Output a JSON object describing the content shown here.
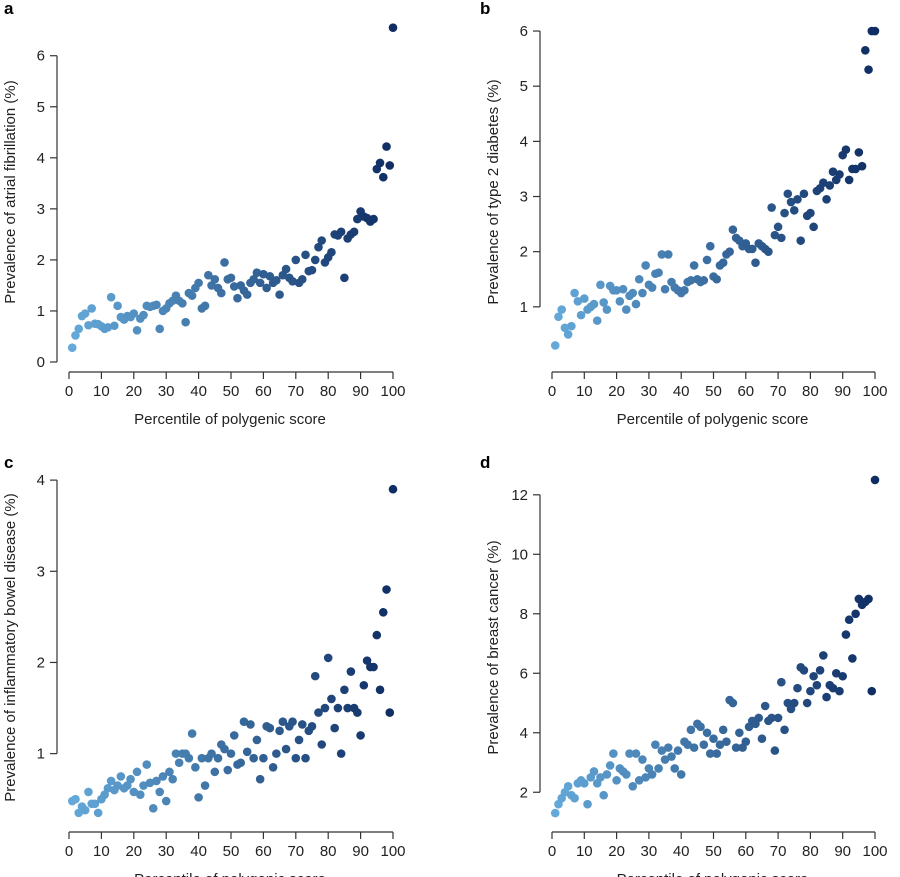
{
  "chart_data": [
    {
      "type": "scatter",
      "panel_label": "a",
      "title": "",
      "xlabel": "Percentile of polygenic score",
      "ylabel": "Prevalence of atrial fibrillation (%)",
      "xlim": [
        0,
        100
      ],
      "ylim": [
        0,
        6.7
      ],
      "xticks": [
        0,
        10,
        20,
        30,
        40,
        50,
        60,
        70,
        80,
        90,
        100
      ],
      "yticks": [
        0,
        1,
        2,
        3,
        4,
        5,
        6
      ],
      "x": [
        1,
        2,
        3,
        4,
        5,
        6,
        7,
        8,
        9,
        10,
        11,
        12,
        13,
        14,
        15,
        16,
        17,
        18,
        19,
        20,
        21,
        22,
        23,
        24,
        25,
        26,
        27,
        28,
        29,
        30,
        31,
        32,
        33,
        34,
        35,
        36,
        37,
        38,
        39,
        40,
        41,
        42,
        43,
        44,
        45,
        46,
        47,
        48,
        49,
        50,
        51,
        52,
        53,
        54,
        55,
        56,
        57,
        58,
        59,
        60,
        61,
        62,
        63,
        64,
        65,
        66,
        67,
        68,
        69,
        70,
        71,
        72,
        73,
        74,
        75,
        76,
        77,
        78,
        79,
        80,
        81,
        82,
        83,
        84,
        85,
        86,
        87,
        88,
        89,
        90,
        91,
        92,
        93,
        94,
        95,
        96,
        97,
        98,
        99,
        100
      ],
      "y": [
        0.28,
        0.52,
        0.65,
        0.9,
        0.95,
        0.72,
        1.05,
        0.75,
        0.74,
        0.7,
        0.65,
        0.68,
        1.27,
        0.71,
        1.1,
        0.88,
        0.83,
        0.9,
        0.88,
        0.95,
        0.62,
        0.85,
        0.92,
        1.1,
        1.08,
        1.1,
        1.12,
        0.65,
        1.0,
        1.05,
        1.15,
        1.2,
        1.3,
        1.2,
        1.15,
        0.78,
        1.35,
        1.3,
        1.45,
        1.55,
        1.05,
        1.1,
        1.7,
        1.5,
        1.62,
        1.45,
        1.35,
        1.95,
        1.62,
        1.65,
        1.48,
        1.25,
        1.5,
        1.4,
        1.32,
        1.55,
        1.62,
        1.75,
        1.55,
        1.72,
        1.45,
        1.68,
        1.55,
        1.6,
        1.32,
        1.7,
        1.82,
        1.65,
        1.58,
        2.0,
        1.55,
        1.62,
        2.1,
        1.78,
        1.8,
        2.0,
        2.25,
        2.38,
        1.95,
        2.05,
        2.15,
        2.5,
        2.48,
        2.55,
        1.65,
        2.42,
        2.5,
        2.55,
        2.8,
        2.95,
        2.85,
        2.82,
        2.75,
        2.8,
        3.78,
        3.9,
        3.62,
        4.22,
        3.85,
        6.55
      ]
    },
    {
      "type": "scatter",
      "panel_label": "b",
      "title": "",
      "xlabel": "Percentile of polygenic score",
      "ylabel": "Prevalence of type 2 diabetes (%)",
      "xlim": [
        0,
        100
      ],
      "ylim": [
        0,
        6.2
      ],
      "xticks": [
        0,
        10,
        20,
        30,
        40,
        50,
        60,
        70,
        80,
        90,
        100
      ],
      "yticks": [
        1,
        2,
        3,
        4,
        5,
        6
      ],
      "x": [
        1,
        2,
        3,
        4,
        5,
        6,
        7,
        8,
        9,
        10,
        11,
        12,
        13,
        14,
        15,
        16,
        17,
        18,
        19,
        20,
        21,
        22,
        23,
        24,
        25,
        26,
        27,
        28,
        29,
        30,
        31,
        32,
        33,
        34,
        35,
        36,
        37,
        38,
        39,
        40,
        41,
        42,
        43,
        44,
        45,
        46,
        47,
        48,
        49,
        50,
        51,
        52,
        53,
        54,
        55,
        56,
        57,
        58,
        59,
        60,
        61,
        62,
        63,
        64,
        65,
        66,
        67,
        68,
        69,
        70,
        71,
        72,
        73,
        74,
        75,
        76,
        77,
        78,
        79,
        80,
        81,
        82,
        83,
        84,
        85,
        86,
        87,
        88,
        89,
        90,
        91,
        92,
        93,
        94,
        95,
        96,
        97,
        98,
        99,
        100
      ],
      "y": [
        0.3,
        0.82,
        0.95,
        0.62,
        0.5,
        0.65,
        1.25,
        1.1,
        0.85,
        1.15,
        0.95,
        1.0,
        1.05,
        0.75,
        1.4,
        1.08,
        0.95,
        1.38,
        1.3,
        1.3,
        1.1,
        1.32,
        0.95,
        1.2,
        1.25,
        1.05,
        1.5,
        1.25,
        1.75,
        1.4,
        1.35,
        1.6,
        1.62,
        1.95,
        1.32,
        1.95,
        1.45,
        1.35,
        1.3,
        1.25,
        1.3,
        1.45,
        1.48,
        1.75,
        1.5,
        1.45,
        1.48,
        1.85,
        2.1,
        1.55,
        1.5,
        1.75,
        1.8,
        1.95,
        2.0,
        2.4,
        2.25,
        2.2,
        2.1,
        2.15,
        2.05,
        2.05,
        1.8,
        2.15,
        2.1,
        2.05,
        2.0,
        2.8,
        2.3,
        2.45,
        2.25,
        2.7,
        3.05,
        2.9,
        2.75,
        2.95,
        2.2,
        3.05,
        2.65,
        2.7,
        2.45,
        3.1,
        3.15,
        3.25,
        2.95,
        3.2,
        3.45,
        3.3,
        3.4,
        3.75,
        3.85,
        3.3,
        3.5,
        3.5,
        3.8,
        3.55,
        5.65,
        5.3,
        6.0,
        6.0
      ]
    },
    {
      "type": "scatter",
      "panel_label": "c",
      "title": "",
      "xlabel": "Percentile of polygenic score",
      "ylabel": "Prevalence of inflammatory bowel disease (%)",
      "xlim": [
        0,
        100
      ],
      "ylim": [
        0.25,
        4.1
      ],
      "xticks": [
        0,
        10,
        20,
        30,
        40,
        50,
        60,
        70,
        80,
        90,
        100
      ],
      "yticks": [
        1,
        2,
        3,
        4
      ],
      "x": [
        1,
        2,
        3,
        4,
        5,
        6,
        7,
        8,
        9,
        10,
        11,
        12,
        13,
        14,
        15,
        16,
        17,
        18,
        19,
        20,
        21,
        22,
        23,
        24,
        25,
        26,
        27,
        28,
        29,
        30,
        31,
        32,
        33,
        34,
        35,
        36,
        37,
        38,
        39,
        40,
        41,
        42,
        43,
        44,
        45,
        46,
        47,
        48,
        49,
        50,
        51,
        52,
        53,
        54,
        55,
        56,
        57,
        58,
        59,
        60,
        61,
        62,
        63,
        64,
        65,
        66,
        67,
        68,
        69,
        70,
        71,
        72,
        73,
        74,
        75,
        76,
        77,
        78,
        79,
        80,
        81,
        82,
        83,
        84,
        85,
        86,
        87,
        88,
        89,
        90,
        91,
        92,
        93,
        94,
        95,
        96,
        97,
        98,
        99,
        100
      ],
      "y": [
        0.48,
        0.5,
        0.35,
        0.42,
        0.38,
        0.58,
        0.45,
        0.45,
        0.35,
        0.5,
        0.55,
        0.62,
        0.7,
        0.6,
        0.65,
        0.75,
        0.62,
        0.65,
        0.72,
        0.58,
        0.8,
        0.55,
        0.65,
        0.88,
        0.68,
        0.4,
        0.7,
        0.58,
        0.75,
        0.48,
        0.8,
        0.72,
        1.0,
        0.9,
        1.0,
        1.0,
        0.95,
        1.22,
        0.85,
        0.52,
        0.95,
        0.65,
        0.95,
        1.0,
        0.8,
        0.95,
        1.1,
        1.05,
        0.82,
        1.0,
        1.2,
        0.88,
        0.9,
        1.35,
        1.02,
        1.32,
        0.95,
        1.15,
        0.72,
        0.95,
        1.3,
        1.28,
        0.85,
        1.0,
        1.25,
        1.35,
        1.05,
        1.3,
        1.35,
        0.95,
        1.15,
        1.32,
        0.95,
        1.25,
        1.3,
        1.85,
        1.45,
        1.1,
        1.5,
        2.05,
        1.6,
        1.28,
        1.5,
        1.0,
        1.7,
        1.5,
        1.9,
        1.5,
        1.45,
        1.2,
        1.75,
        2.02,
        1.95,
        1.95,
        2.3,
        1.7,
        2.55,
        2.8,
        1.45,
        3.9
      ]
    },
    {
      "type": "scatter",
      "panel_label": "d",
      "title": "",
      "xlabel": "Percentile of polygenic score",
      "ylabel": "Prevalence of breast cancer (%)",
      "xlim": [
        0,
        100
      ],
      "ylim": [
        1.0,
        12.8
      ],
      "xticks": [
        0,
        10,
        20,
        30,
        40,
        50,
        60,
        70,
        80,
        90,
        100
      ],
      "yticks": [
        2,
        4,
        6,
        8,
        10,
        12
      ],
      "x": [
        1,
        2,
        3,
        4,
        5,
        6,
        7,
        8,
        9,
        10,
        11,
        12,
        13,
        14,
        15,
        16,
        17,
        18,
        19,
        20,
        21,
        22,
        23,
        24,
        25,
        26,
        27,
        28,
        29,
        30,
        31,
        32,
        33,
        34,
        35,
        36,
        37,
        38,
        39,
        40,
        41,
        42,
        43,
        44,
        45,
        46,
        47,
        48,
        49,
        50,
        51,
        52,
        53,
        54,
        55,
        56,
        57,
        58,
        59,
        60,
        61,
        62,
        63,
        64,
        65,
        66,
        67,
        68,
        69,
        70,
        71,
        72,
        73,
        74,
        75,
        76,
        77,
        78,
        79,
        80,
        81,
        82,
        83,
        84,
        85,
        86,
        87,
        88,
        89,
        90,
        91,
        92,
        93,
        94,
        95,
        96,
        97,
        98,
        99,
        100
      ],
      "y": [
        1.3,
        1.6,
        1.8,
        2.0,
        2.2,
        1.9,
        1.8,
        2.3,
        2.4,
        2.3,
        1.6,
        2.5,
        2.7,
        2.3,
        2.5,
        1.9,
        2.6,
        2.9,
        3.3,
        2.4,
        2.8,
        2.7,
        2.6,
        3.3,
        2.2,
        3.3,
        2.4,
        3.1,
        2.5,
        2.8,
        2.6,
        3.6,
        2.8,
        3.4,
        3.1,
        3.5,
        3.2,
        2.8,
        3.4,
        2.6,
        3.7,
        3.6,
        4.1,
        3.5,
        4.3,
        4.2,
        3.6,
        4.0,
        3.3,
        3.8,
        3.3,
        3.6,
        4.1,
        3.7,
        5.1,
        5.0,
        3.5,
        4.0,
        3.5,
        3.7,
        4.2,
        4.4,
        4.3,
        4.5,
        3.8,
        4.9,
        4.4,
        4.5,
        3.4,
        4.5,
        5.7,
        4.1,
        5.0,
        4.8,
        5.0,
        5.5,
        6.2,
        6.1,
        5.0,
        5.4,
        5.9,
        5.6,
        6.1,
        6.6,
        5.2,
        5.6,
        5.5,
        6.0,
        5.4,
        5.9,
        7.3,
        7.8,
        6.5,
        8.0,
        8.5,
        8.3,
        8.4,
        8.5,
        5.4,
        12.5
      ]
    }
  ],
  "colors": {
    "low": "#64a9d9",
    "high": "#0f2d63",
    "axis": "#333333"
  }
}
